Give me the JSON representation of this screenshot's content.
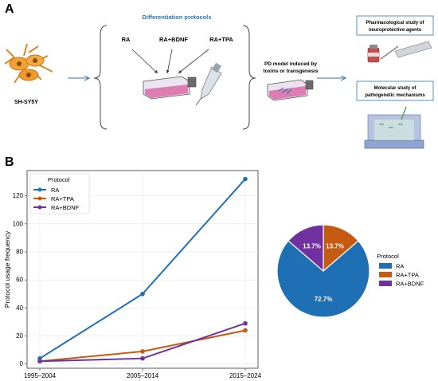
{
  "panel_a": {
    "label": "A",
    "title": "Differentiation protocols",
    "cell_line": "SH-SY5Y",
    "protocols": [
      "RA",
      "RA+BDNF",
      "RA+TPA"
    ],
    "pd_model": [
      "PD model induced by",
      "toxins or transgenesis"
    ],
    "box1": [
      "Pharmacological study of",
      "neuroprotective agents"
    ],
    "box2": [
      "Molecular study of",
      "pathogenetic mechanisms"
    ]
  },
  "panel_b": {
    "label": "B",
    "line_chart": {
      "type": "line",
      "ylabel": "Protocol usage frequency",
      "categories": [
        "1995–2004",
        "2005–2014",
        "2015–2024"
      ],
      "yticks": [
        0,
        20,
        40,
        60,
        80,
        100,
        120
      ],
      "ylim": [
        -3,
        138
      ],
      "legend_title": "Protocol",
      "legend_position": "top-left",
      "grid": true,
      "series": [
        {
          "name": "RA",
          "color": "#1f6fb5",
          "values": [
            4,
            50,
            132
          ]
        },
        {
          "name": "RA+TPA",
          "color": "#c55a11",
          "values": [
            2,
            9,
            24
          ]
        },
        {
          "name": "RA+BDNF",
          "color": "#7030a0",
          "values": [
            2,
            4,
            29
          ]
        }
      ]
    },
    "pie_chart": {
      "type": "pie",
      "legend_title": "Protocol",
      "legend_position": "right",
      "slices": [
        {
          "name": "RA",
          "value": 72.7,
          "label": "72.7%",
          "color": "#1f6fb5"
        },
        {
          "name": "RA+TPA",
          "value": 13.7,
          "label": "13.7%",
          "color": "#c55a11"
        },
        {
          "name": "RA+BDNF",
          "value": 13.7,
          "label": "13.7%",
          "color": "#7030a0"
        }
      ]
    }
  }
}
